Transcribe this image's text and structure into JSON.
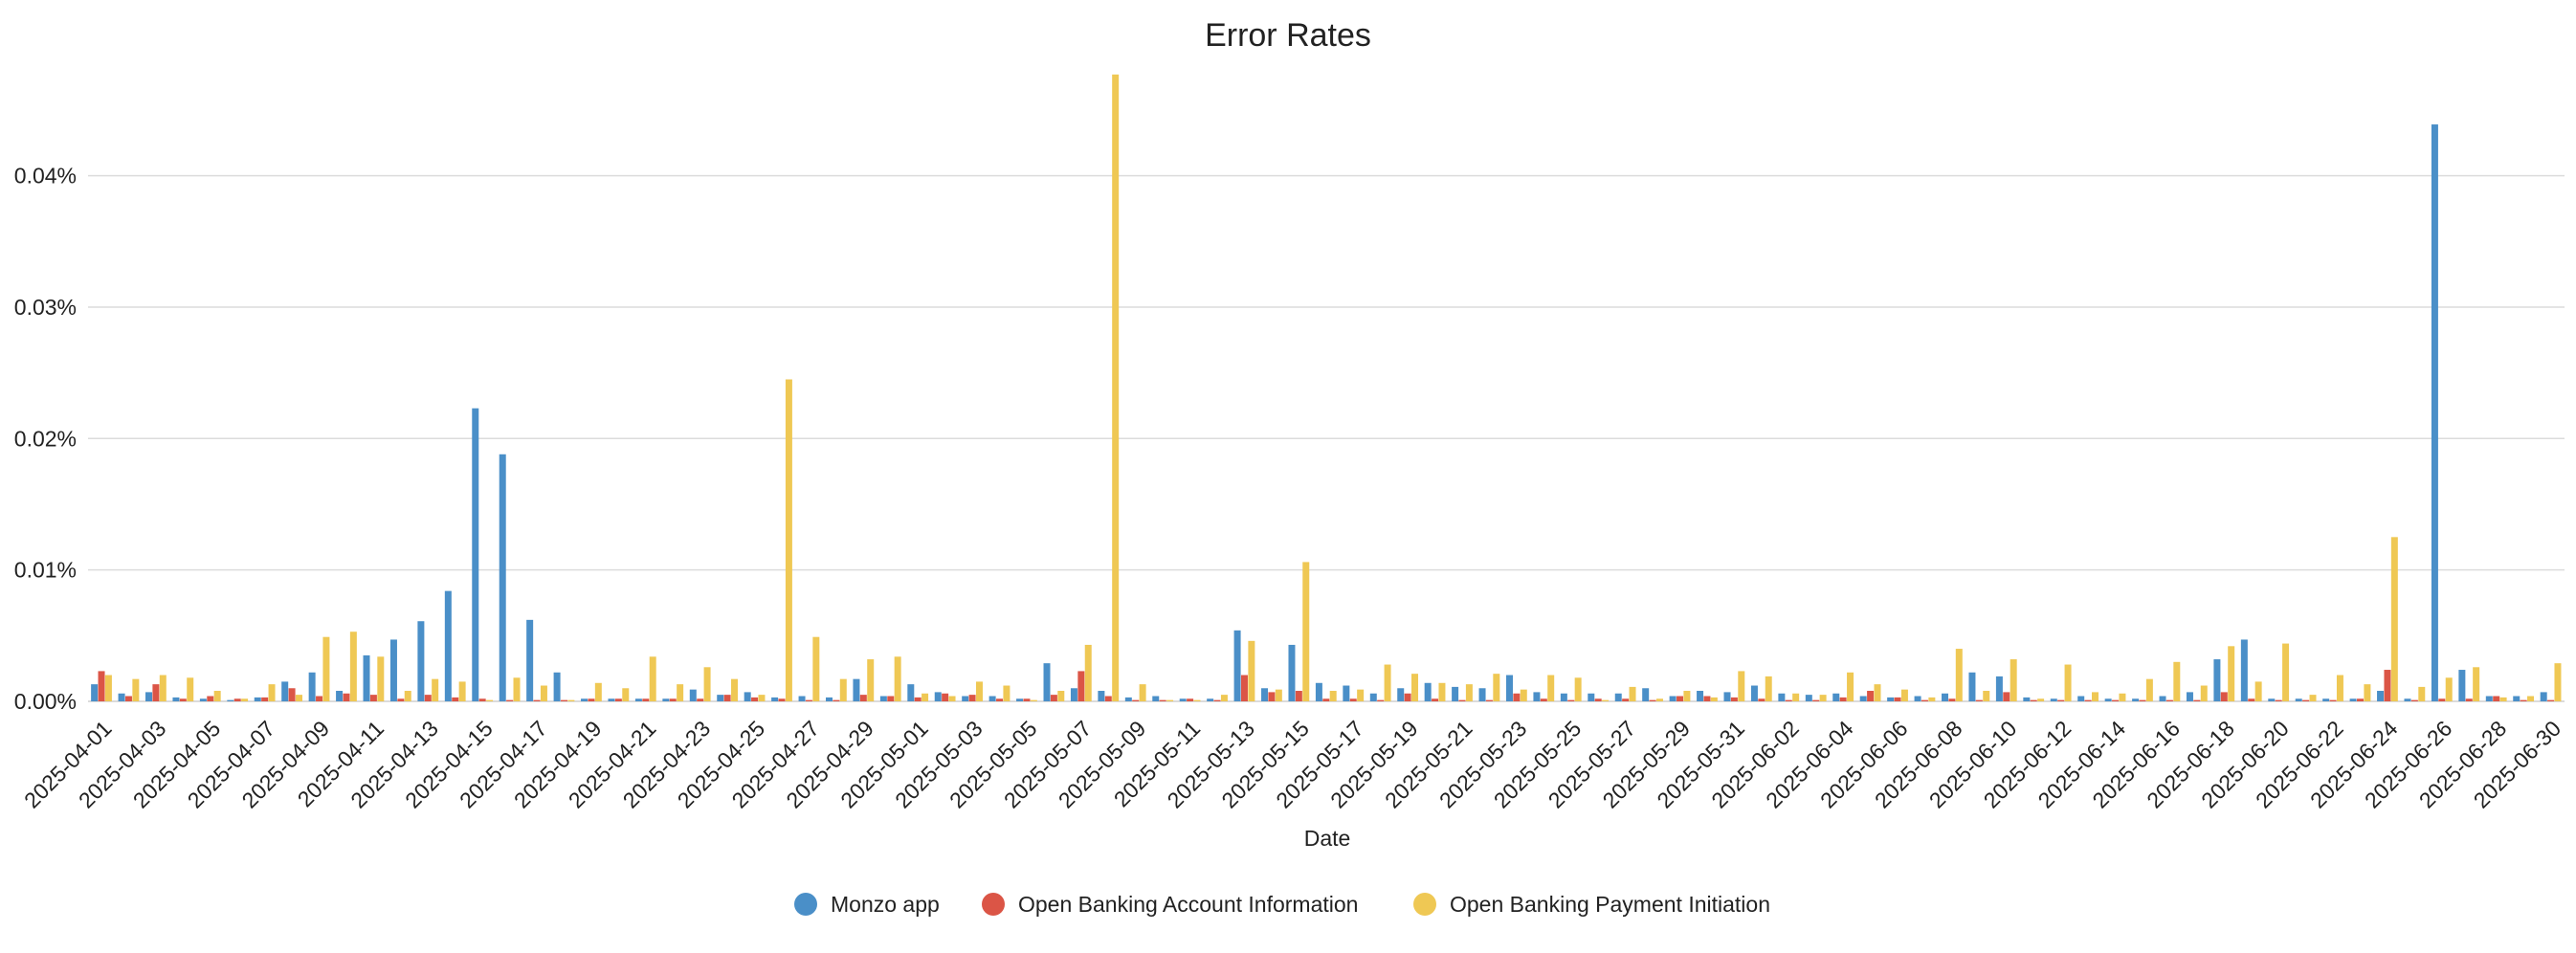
{
  "chart_data": {
    "type": "bar",
    "title": "Error Rates",
    "xlabel": "Date",
    "ylabel": "",
    "ylim": [
      0,
      0.049
    ],
    "yticks": [
      0,
      0.01,
      0.02,
      0.03,
      0.04
    ],
    "ytick_labels": [
      "0.00%",
      "0.01%",
      "0.02%",
      "0.03%",
      "0.04%"
    ],
    "grid": true,
    "legend_position": "bottom",
    "categories": [
      "2025-04-01",
      "2025-04-02",
      "2025-04-03",
      "2025-04-04",
      "2025-04-05",
      "2025-04-06",
      "2025-04-07",
      "2025-04-08",
      "2025-04-09",
      "2025-04-10",
      "2025-04-11",
      "2025-04-12",
      "2025-04-13",
      "2025-04-14",
      "2025-04-15",
      "2025-04-16",
      "2025-04-17",
      "2025-04-18",
      "2025-04-19",
      "2025-04-20",
      "2025-04-21",
      "2025-04-22",
      "2025-04-23",
      "2025-04-24",
      "2025-04-25",
      "2025-04-26",
      "2025-04-27",
      "2025-04-28",
      "2025-04-29",
      "2025-04-30",
      "2025-05-01",
      "2025-05-02",
      "2025-05-03",
      "2025-05-04",
      "2025-05-05",
      "2025-05-06",
      "2025-05-07",
      "2025-05-08",
      "2025-05-09",
      "2025-05-10",
      "2025-05-11",
      "2025-05-12",
      "2025-05-13",
      "2025-05-14",
      "2025-05-15",
      "2025-05-16",
      "2025-05-17",
      "2025-05-18",
      "2025-05-19",
      "2025-05-20",
      "2025-05-21",
      "2025-05-22",
      "2025-05-23",
      "2025-05-24",
      "2025-05-25",
      "2025-05-26",
      "2025-05-27",
      "2025-05-28",
      "2025-05-29",
      "2025-05-30",
      "2025-05-31",
      "2025-06-01",
      "2025-06-02",
      "2025-06-03",
      "2025-06-04",
      "2025-06-05",
      "2025-06-06",
      "2025-06-07",
      "2025-06-08",
      "2025-06-09",
      "2025-06-10",
      "2025-06-11",
      "2025-06-12",
      "2025-06-13",
      "2025-06-14",
      "2025-06-15",
      "2025-06-16",
      "2025-06-17",
      "2025-06-18",
      "2025-06-19",
      "2025-06-20",
      "2025-06-21",
      "2025-06-22",
      "2025-06-23",
      "2025-06-24",
      "2025-06-25",
      "2025-06-26",
      "2025-06-27",
      "2025-06-28",
      "2025-06-29",
      "2025-06-30"
    ],
    "tick_labels": [
      "2025-04-01",
      "2025-04-03",
      "2025-04-05",
      "2025-04-07",
      "2025-04-09",
      "2025-04-11",
      "2025-04-13",
      "2025-04-15",
      "2025-04-17",
      "2025-04-19",
      "2025-04-21",
      "2025-04-23",
      "2025-04-25",
      "2025-04-27",
      "2025-04-29",
      "2025-05-01",
      "2025-05-03",
      "2025-05-05",
      "2025-05-07",
      "2025-05-09",
      "2025-05-11",
      "2025-05-13",
      "2025-05-15",
      "2025-05-17",
      "2025-05-19",
      "2025-05-21",
      "2025-05-23",
      "2025-05-25",
      "2025-05-27",
      "2025-05-29",
      "2025-05-31",
      "2025-06-02",
      "2025-06-04",
      "2025-06-06",
      "2025-06-08",
      "2025-06-10",
      "2025-06-12",
      "2025-06-14",
      "2025-06-16",
      "2025-06-18",
      "2025-06-20",
      "2025-06-22",
      "2025-06-24",
      "2025-06-26",
      "2025-06-28",
      "2025-06-30"
    ],
    "series": [
      {
        "name": "Monzo app",
        "color": "#4a8fc8",
        "values": [
          0.0013,
          0.0006,
          0.0007,
          0.0003,
          0.0002,
          0.0001,
          0.0003,
          0.0015,
          0.0022,
          0.0008,
          0.0035,
          0.0047,
          0.0061,
          0.0084,
          0.0223,
          0.0188,
          0.0062,
          0.0022,
          0.0002,
          0.0002,
          0.0002,
          0.0002,
          0.0009,
          0.0005,
          0.0007,
          0.0003,
          0.0004,
          0.0003,
          0.0017,
          0.0004,
          0.0013,
          0.0007,
          0.0004,
          0.0004,
          0.0002,
          0.0029,
          0.001,
          0.0008,
          0.0003,
          0.0004,
          0.0002,
          0.0002,
          0.0054,
          0.001,
          0.0043,
          0.0014,
          0.0012,
          0.0006,
          0.001,
          0.0014,
          0.0011,
          0.001,
          0.002,
          0.0007,
          0.0006,
          0.0006,
          0.0006,
          0.001,
          0.0004,
          0.0008,
          0.0007,
          0.0012,
          0.0006,
          0.0005,
          0.0006,
          0.0004,
          0.0003,
          0.0004,
          0.0006,
          0.0022,
          0.0019,
          0.0003,
          0.0002,
          0.0004,
          0.0002,
          0.0002,
          0.0004,
          0.0007,
          0.0032,
          0.0047,
          0.0002,
          0.0002,
          0.0002,
          0.0002,
          0.0008,
          0.0002,
          0.0439,
          0.0024,
          0.0004,
          0.0004,
          0.0007
        ]
      },
      {
        "name": "Open Banking Account Information",
        "color": "#db5546",
        "values": [
          0.0023,
          0.0004,
          0.0013,
          0.0002,
          0.0004,
          0.0002,
          0.0003,
          0.001,
          0.0004,
          0.0006,
          0.0005,
          0.0002,
          0.0005,
          0.0003,
          0.0002,
          0.0001,
          0.0001,
          0.0001,
          0.0002,
          0.0002,
          0.0002,
          0.0002,
          0.0002,
          0.0005,
          0.0003,
          0.0002,
          0.0001,
          0.0001,
          0.0005,
          0.0004,
          0.0003,
          0.0006,
          0.0005,
          0.0002,
          0.0002,
          0.0005,
          0.0023,
          0.0004,
          0.0001,
          0.0001,
          0.0002,
          0.0001,
          0.002,
          0.0007,
          0.0008,
          0.0002,
          0.0002,
          0.0001,
          0.0006,
          0.0002,
          0.0001,
          0.0001,
          0.0006,
          0.0002,
          0.0001,
          0.0002,
          0.0002,
          0.0001,
          0.0004,
          0.0004,
          0.0003,
          0.0002,
          0.0001,
          0.0001,
          0.0003,
          0.0008,
          0.0003,
          0.0001,
          0.0002,
          0.0001,
          0.0007,
          0.0001,
          0.0001,
          0.0001,
          0.0001,
          0.0001,
          0.0001,
          0.0001,
          0.0007,
          0.0002,
          0.0001,
          0.0001,
          0.0001,
          0.0002,
          0.0024,
          0.0001,
          0.0002,
          0.0002,
          0.0004,
          0.0001,
          0.0001
        ]
      },
      {
        "name": "Open Banking Payment Initiation",
        "color": "#efc854",
        "values": [
          0.002,
          0.0017,
          0.002,
          0.0018,
          0.0008,
          0.0002,
          0.0013,
          0.0005,
          0.0049,
          0.0053,
          0.0034,
          0.0008,
          0.0017,
          0.0015,
          0.0001,
          0.0018,
          0.0012,
          0.0001,
          0.0014,
          0.001,
          0.0034,
          0.0013,
          0.0026,
          0.0017,
          0.0005,
          0.0245,
          0.0049,
          0.0017,
          0.0032,
          0.0034,
          0.0006,
          0.0004,
          0.0015,
          0.0012,
          0.0001,
          0.0008,
          0.0043,
          0.0477,
          0.0013,
          0.0001,
          0.0001,
          0.0005,
          0.0046,
          0.0009,
          0.0106,
          0.0008,
          0.0009,
          0.0028,
          0.0021,
          0.0014,
          0.0013,
          0.0021,
          0.0009,
          0.002,
          0.0018,
          0.0001,
          0.0011,
          0.0002,
          0.0008,
          0.0003,
          0.0023,
          0.0019,
          0.0006,
          0.0005,
          0.0022,
          0.0013,
          0.0009,
          0.0003,
          0.004,
          0.0008,
          0.0032,
          0.0002,
          0.0028,
          0.0007,
          0.0006,
          0.0017,
          0.003,
          0.0012,
          0.0042,
          0.0015,
          0.0044,
          0.0005,
          0.002,
          0.0013,
          0.0125,
          0.0011,
          0.0018,
          0.0026,
          0.0003,
          0.0004,
          0.0029
        ]
      }
    ]
  }
}
